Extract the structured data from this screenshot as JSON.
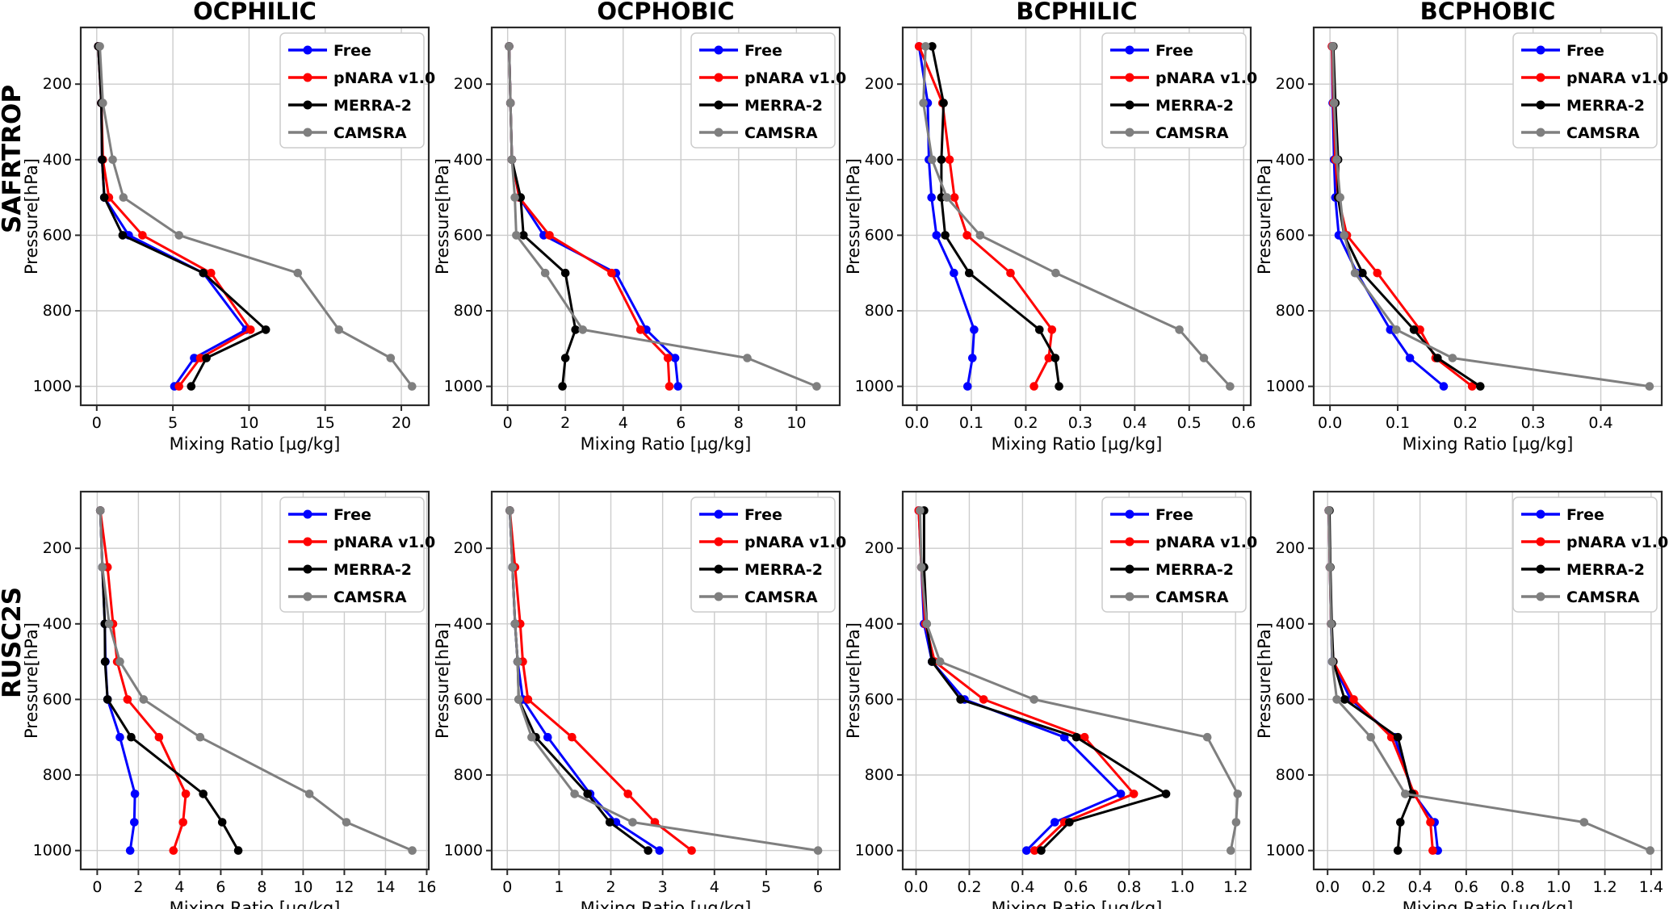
{
  "figure": {
    "rows": [
      {
        "label": "SAFRTROP"
      },
      {
        "label": "RUSC2S"
      }
    ],
    "columns": [
      "OCPHILIC",
      "OCPHOBIC",
      "BCPHILIC",
      "BCPHOBIC"
    ],
    "xlabel": "Mixing Ratio [µg/kg]",
    "ylabel": "Pressure[hPa]",
    "colors": {
      "free": "#0000ff",
      "pnara": "#ff0000",
      "merra2": "#000000",
      "camsra": "#7f7f7f",
      "grid": "#cccccc",
      "spine": "#2a2a2a",
      "background": "#ffffff"
    },
    "legend": {
      "entries": [
        "Free",
        "pNARA v1.0",
        "MERRA-2",
        "CAMSRA"
      ]
    }
  },
  "chart_data": [
    {
      "type": "line",
      "title": "OCPHILIC",
      "site": "SAFRTROP",
      "xlabel": "Mixing Ratio [µg/kg]",
      "ylabel": "Pressure[hPa]",
      "pressure_levels": [
        100,
        250,
        400,
        500,
        600,
        700,
        850,
        925,
        1000
      ],
      "yticks": [
        200,
        400,
        600,
        800,
        1000
      ],
      "ylim": [
        1050,
        50
      ],
      "xticks": [
        "0",
        "5",
        "10",
        "15",
        "20"
      ],
      "xlim": [
        -1.05,
        21.8
      ],
      "series": [
        {
          "name": "Free",
          "color": "#0000ff",
          "values": [
            0.1,
            0.3,
            0.35,
            0.5,
            2.1,
            7.0,
            9.8,
            6.4,
            5.1
          ]
        },
        {
          "name": "pNARA v1.0",
          "color": "#ff0000",
          "values": [
            0.1,
            0.3,
            0.4,
            0.8,
            3.0,
            7.5,
            10.1,
            6.8,
            5.4
          ]
        },
        {
          "name": "MERRA-2",
          "color": "#000000",
          "values": [
            0.1,
            0.3,
            0.35,
            0.5,
            1.7,
            7.0,
            11.1,
            7.2,
            6.2
          ]
        },
        {
          "name": "CAMSRA",
          "color": "#7f7f7f",
          "values": [
            0.2,
            0.4,
            1.05,
            1.75,
            5.4,
            13.2,
            15.9,
            19.3,
            20.7
          ]
        }
      ]
    },
    {
      "type": "line",
      "title": "OCPHOBIC",
      "site": "SAFRTROP",
      "xlabel": "Mixing Ratio [µg/kg]",
      "ylabel": "Pressure[hPa]",
      "pressure_levels": [
        100,
        250,
        400,
        500,
        600,
        700,
        850,
        925,
        1000
      ],
      "yticks": [
        200,
        400,
        600,
        800,
        1000
      ],
      "ylim": [
        1050,
        50
      ],
      "xticks": [
        "0",
        "2",
        "4",
        "6",
        "8",
        "10"
      ],
      "xlim": [
        -0.55,
        11.5
      ],
      "series": [
        {
          "name": "Free",
          "color": "#0000ff",
          "values": [
            0.05,
            0.1,
            0.15,
            0.4,
            1.25,
            3.75,
            4.8,
            5.8,
            5.9
          ]
        },
        {
          "name": "pNARA v1.0",
          "color": "#ff0000",
          "values": [
            0.05,
            0.1,
            0.15,
            0.4,
            1.45,
            3.6,
            4.6,
            5.55,
            5.6
          ]
        },
        {
          "name": "MERRA-2",
          "color": "#000000",
          "values": [
            0.05,
            0.1,
            0.15,
            0.45,
            0.55,
            2.0,
            2.35,
            2.0,
            1.9
          ]
        },
        {
          "name": "CAMSRA",
          "color": "#7f7f7f",
          "values": [
            0.05,
            0.1,
            0.15,
            0.25,
            0.3,
            1.3,
            2.6,
            8.3,
            10.7
          ]
        }
      ]
    },
    {
      "type": "line",
      "title": "BCPHILIC",
      "site": "SAFRTROP",
      "xlabel": "Mixing Ratio [µg/kg]",
      "ylabel": "Pressure[hPa]",
      "pressure_levels": [
        100,
        250,
        400,
        500,
        600,
        700,
        850,
        925,
        1000
      ],
      "yticks": [
        200,
        400,
        600,
        800,
        1000
      ],
      "ylim": [
        1050,
        50
      ],
      "xticks": [
        "0.0",
        "0.1",
        "0.2",
        "0.3",
        "0.4",
        "0.5",
        "0.6"
      ],
      "xlim": [
        -0.026,
        0.613
      ],
      "series": [
        {
          "name": "Free",
          "color": "#0000ff",
          "values": [
            0.004,
            0.02,
            0.022,
            0.027,
            0.036,
            0.068,
            0.105,
            0.102,
            0.093
          ]
        },
        {
          "name": "pNARA v1.0",
          "color": "#ff0000",
          "values": [
            0.004,
            0.047,
            0.06,
            0.069,
            0.092,
            0.172,
            0.248,
            0.242,
            0.215
          ]
        },
        {
          "name": "MERRA-2",
          "color": "#000000",
          "values": [
            0.028,
            0.049,
            0.045,
            0.045,
            0.052,
            0.096,
            0.225,
            0.254,
            0.261
          ]
        },
        {
          "name": "CAMSRA",
          "color": "#7f7f7f",
          "values": [
            0.016,
            0.012,
            0.028,
            0.055,
            0.116,
            0.255,
            0.482,
            0.527,
            0.575
          ]
        }
      ]
    },
    {
      "type": "line",
      "title": "BCPHOBIC",
      "site": "SAFRTROP",
      "xlabel": "Mixing Ratio [µg/kg]",
      "ylabel": "Pressure[hPa]",
      "pressure_levels": [
        100,
        250,
        400,
        500,
        600,
        700,
        850,
        925,
        1000
      ],
      "yticks": [
        200,
        400,
        600,
        800,
        1000
      ],
      "ylim": [
        1050,
        50
      ],
      "xticks": [
        "0.0",
        "0.1",
        "0.2",
        "0.3",
        "0.4"
      ],
      "xlim": [
        -0.024,
        0.49
      ],
      "series": [
        {
          "name": "Free",
          "color": "#0000ff",
          "values": [
            0.003,
            0.004,
            0.006,
            0.008,
            0.013,
            0.04,
            0.089,
            0.118,
            0.168
          ]
        },
        {
          "name": "pNARA v1.0",
          "color": "#ff0000",
          "values": [
            0.003,
            0.005,
            0.008,
            0.012,
            0.025,
            0.07,
            0.133,
            0.156,
            0.21
          ]
        },
        {
          "name": "MERRA-2",
          "color": "#000000",
          "values": [
            0.005,
            0.008,
            0.012,
            0.012,
            0.021,
            0.048,
            0.124,
            0.159,
            0.222
          ]
        },
        {
          "name": "CAMSRA",
          "color": "#7f7f7f",
          "values": [
            0.004,
            0.006,
            0.01,
            0.015,
            0.021,
            0.037,
            0.098,
            0.181,
            0.472
          ]
        }
      ]
    },
    {
      "type": "line",
      "title": "",
      "site": "RUSC2S",
      "xlabel": "Mixing Ratio [µg/kg]",
      "ylabel": "Pressure[hPa]",
      "pressure_levels": [
        100,
        250,
        400,
        500,
        600,
        700,
        850,
        925,
        1000
      ],
      "yticks": [
        200,
        400,
        600,
        800,
        1000
      ],
      "ylim": [
        1050,
        50
      ],
      "xticks": [
        "0",
        "2",
        "4",
        "6",
        "8",
        "10",
        "12",
        "14",
        "16"
      ],
      "xlim": [
        -0.8,
        16.1
      ],
      "series": [
        {
          "name": "Free",
          "color": "#0000ff",
          "values": [
            0.15,
            0.25,
            0.37,
            0.4,
            0.5,
            1.1,
            1.83,
            1.8,
            1.6
          ]
        },
        {
          "name": "pNARA v1.0",
          "color": "#ff0000",
          "values": [
            0.15,
            0.5,
            0.77,
            0.97,
            1.47,
            3.0,
            4.3,
            4.17,
            3.7
          ]
        },
        {
          "name": "MERRA-2",
          "color": "#000000",
          "values": [
            0.15,
            0.25,
            0.37,
            0.38,
            0.5,
            1.65,
            5.15,
            6.07,
            6.85
          ]
        },
        {
          "name": "CAMSRA",
          "color": "#7f7f7f",
          "values": [
            0.15,
            0.25,
            0.58,
            1.1,
            2.25,
            5.0,
            10.3,
            12.1,
            15.3
          ]
        }
      ]
    },
    {
      "type": "line",
      "title": "",
      "site": "RUSC2S",
      "xlabel": "Mixing Ratio [µg/kg]",
      "ylabel": "Pressure[hPa]",
      "pressure_levels": [
        100,
        250,
        400,
        500,
        600,
        700,
        850,
        925,
        1000
      ],
      "yticks": [
        200,
        400,
        600,
        800,
        1000
      ],
      "ylim": [
        1050,
        50
      ],
      "xticks": [
        "0",
        "1",
        "2",
        "3",
        "4",
        "5",
        "6"
      ],
      "xlim": [
        -0.3,
        6.42
      ],
      "series": [
        {
          "name": "Free",
          "color": "#0000ff",
          "values": [
            0.05,
            0.1,
            0.15,
            0.2,
            0.3,
            0.78,
            1.6,
            2.1,
            2.94
          ]
        },
        {
          "name": "pNARA v1.0",
          "color": "#ff0000",
          "values": [
            0.05,
            0.15,
            0.25,
            0.3,
            0.4,
            1.25,
            2.33,
            2.85,
            3.56
          ]
        },
        {
          "name": "MERRA-2",
          "color": "#000000",
          "values": [
            0.05,
            0.1,
            0.15,
            0.2,
            0.22,
            0.55,
            1.55,
            1.98,
            2.72
          ]
        },
        {
          "name": "CAMSRA",
          "color": "#7f7f7f",
          "values": [
            0.05,
            0.1,
            0.15,
            0.2,
            0.22,
            0.47,
            1.3,
            2.42,
            6.0
          ]
        }
      ]
    },
    {
      "type": "line",
      "title": "",
      "site": "RUSC2S",
      "xlabel": "Mixing Ratio [µg/kg]",
      "ylabel": "Pressure[hPa]",
      "pressure_levels": [
        100,
        250,
        400,
        500,
        600,
        700,
        850,
        925,
        1000
      ],
      "yticks": [
        200,
        400,
        600,
        800,
        1000
      ],
      "ylim": [
        1050,
        50
      ],
      "xticks": [
        "0.0",
        "0.2",
        "0.4",
        "0.6",
        "0.8",
        "1.0",
        "1.2"
      ],
      "xlim": [
        -0.05,
        1.257
      ],
      "series": [
        {
          "name": "Free",
          "color": "#0000ff",
          "values": [
            0.01,
            0.02,
            0.03,
            0.06,
            0.182,
            0.557,
            0.769,
            0.521,
            0.415
          ]
        },
        {
          "name": "pNARA v1.0",
          "color": "#ff0000",
          "values": [
            0.01,
            0.02,
            0.035,
            0.07,
            0.254,
            0.633,
            0.818,
            0.557,
            0.445
          ]
        },
        {
          "name": "MERRA-2",
          "color": "#000000",
          "values": [
            0.03,
            0.03,
            0.04,
            0.06,
            0.167,
            0.602,
            0.939,
            0.576,
            0.47
          ]
        },
        {
          "name": "CAMSRA",
          "color": "#7f7f7f",
          "values": [
            0.015,
            0.02,
            0.04,
            0.09,
            0.443,
            1.094,
            1.208,
            1.202,
            1.182
          ]
        }
      ]
    },
    {
      "type": "line",
      "title": "",
      "site": "RUSC2S",
      "xlabel": "Mixing Ratio [µg/kg]",
      "ylabel": "Pressure[hPa]",
      "pressure_levels": [
        100,
        250,
        400,
        500,
        600,
        700,
        850,
        925,
        1000
      ],
      "yticks": [
        200,
        400,
        600,
        800,
        1000
      ],
      "ylim": [
        1050,
        50
      ],
      "xticks": [
        "0.0",
        "0.2",
        "0.4",
        "0.6",
        "0.8",
        "1.0",
        "1.2",
        "1.4"
      ],
      "xlim": [
        -0.06,
        1.446
      ],
      "series": [
        {
          "name": "Free",
          "color": "#0000ff",
          "values": [
            0.005,
            0.01,
            0.015,
            0.02,
            0.1,
            0.29,
            0.372,
            0.463,
            0.477
          ]
        },
        {
          "name": "pNARA v1.0",
          "color": "#ff0000",
          "values": [
            0.005,
            0.01,
            0.015,
            0.025,
            0.113,
            0.276,
            0.375,
            0.445,
            0.455
          ]
        },
        {
          "name": "MERRA-2",
          "color": "#000000",
          "values": [
            0.008,
            0.012,
            0.018,
            0.025,
            0.074,
            0.304,
            0.365,
            0.315,
            0.304
          ]
        },
        {
          "name": "CAMSRA",
          "color": "#7f7f7f",
          "values": [
            0.005,
            0.01,
            0.015,
            0.02,
            0.04,
            0.187,
            0.336,
            1.11,
            1.396
          ]
        }
      ]
    }
  ]
}
